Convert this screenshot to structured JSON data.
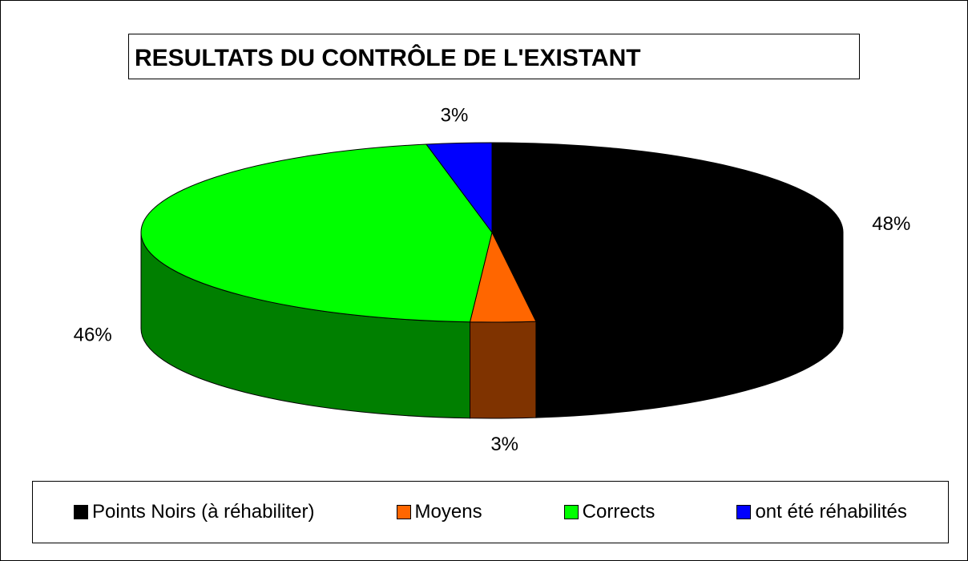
{
  "chart_data": {
    "type": "pie3d",
    "title": "RESULTATS DU CONTRÔLE DE L'EXISTANT",
    "categories": [
      "Points Noirs (à réhabiliter)",
      "Moyens",
      "Corrects",
      "ont été réhabilités"
    ],
    "values": [
      48,
      3,
      46,
      3
    ],
    "value_labels": [
      "48%",
      "3%",
      "46%",
      "3%"
    ],
    "colors": [
      "#000000",
      "#ff6600",
      "#00ff00",
      "#0000ff"
    ],
    "legend": "bottom"
  }
}
